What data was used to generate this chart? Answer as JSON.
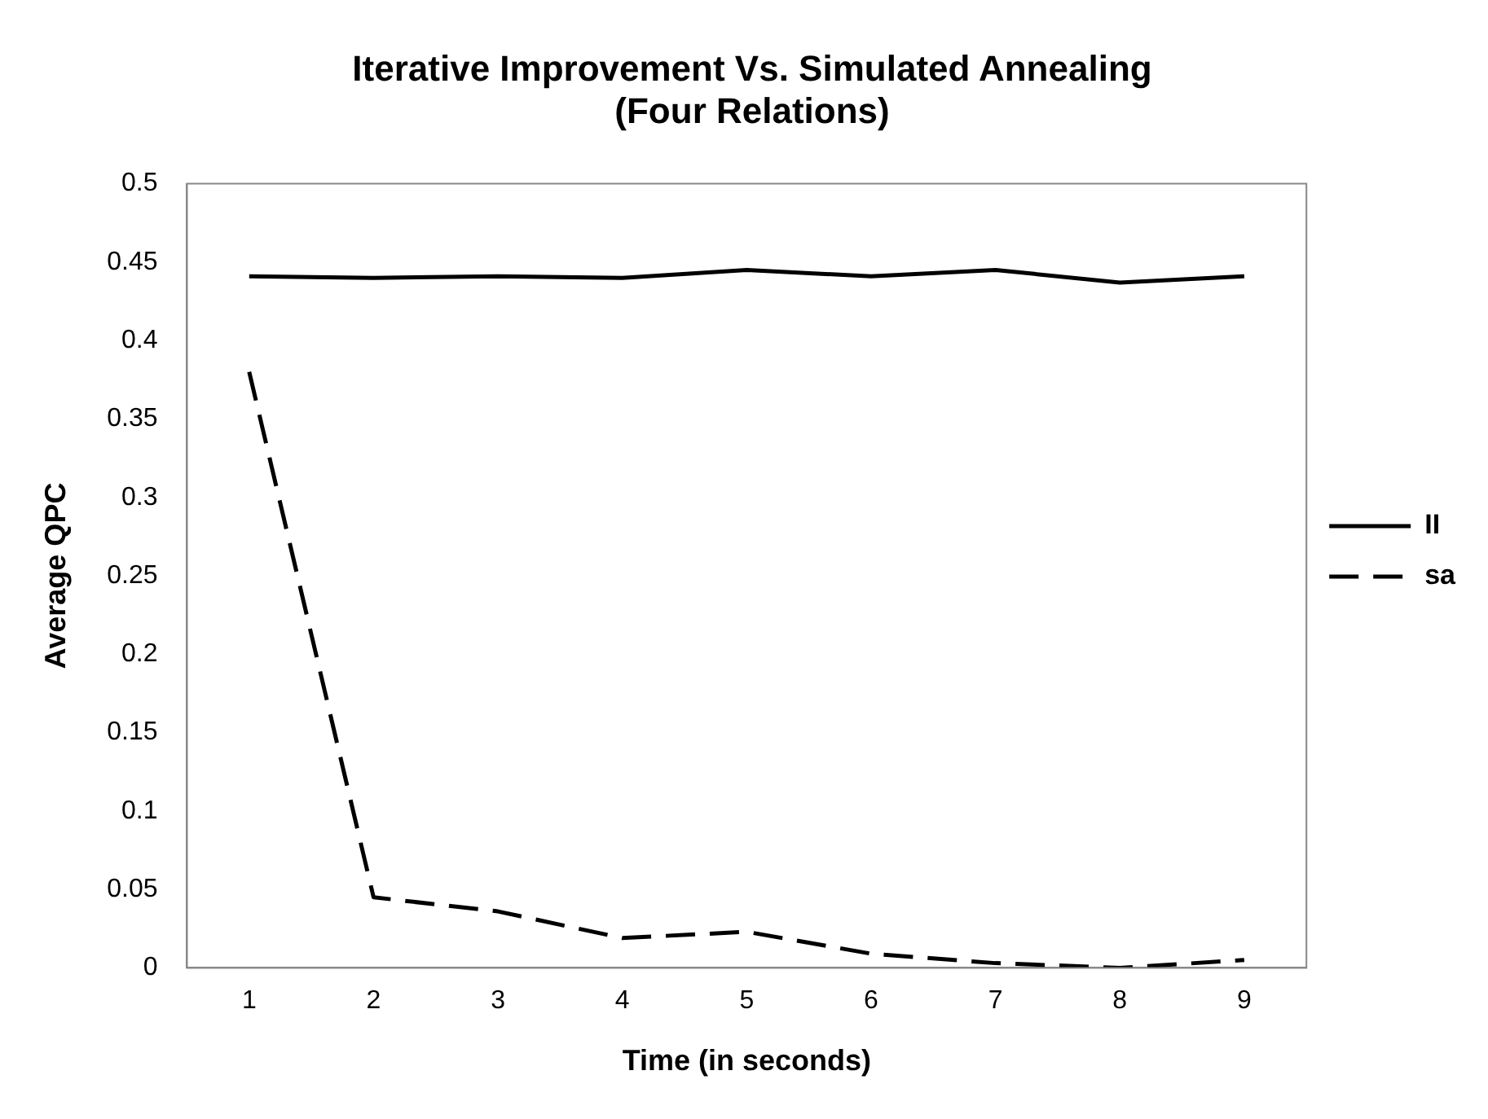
{
  "chart_data": {
    "type": "line",
    "title": "Iterative Improvement Vs. Simulated Annealing\n(Four Relations)",
    "xlabel": "Time (in seconds)",
    "ylabel": "Average QPC",
    "categories": [
      "1",
      "2",
      "3",
      "4",
      "5",
      "6",
      "7",
      "8",
      "9"
    ],
    "series": [
      {
        "name": "II",
        "color": "#000000",
        "line_style": "solid",
        "values": [
          0.441,
          0.44,
          0.441,
          0.44,
          0.445,
          0.441,
          0.445,
          0.437,
          0.441
        ]
      },
      {
        "name": "sa",
        "color": "#000000",
        "line_style": "dashed",
        "values": [
          0.38,
          0.045,
          0.036,
          0.019,
          0.023,
          0.009,
          0.003,
          0,
          0.005
        ]
      }
    ],
    "ylim": [
      0,
      0.5
    ],
    "yticks": [
      0,
      0.05,
      0.1,
      0.15,
      0.2,
      0.25,
      0.3,
      0.35,
      0.4,
      0.45,
      0.5
    ],
    "grid": false,
    "legend": "right",
    "marker": "none"
  }
}
